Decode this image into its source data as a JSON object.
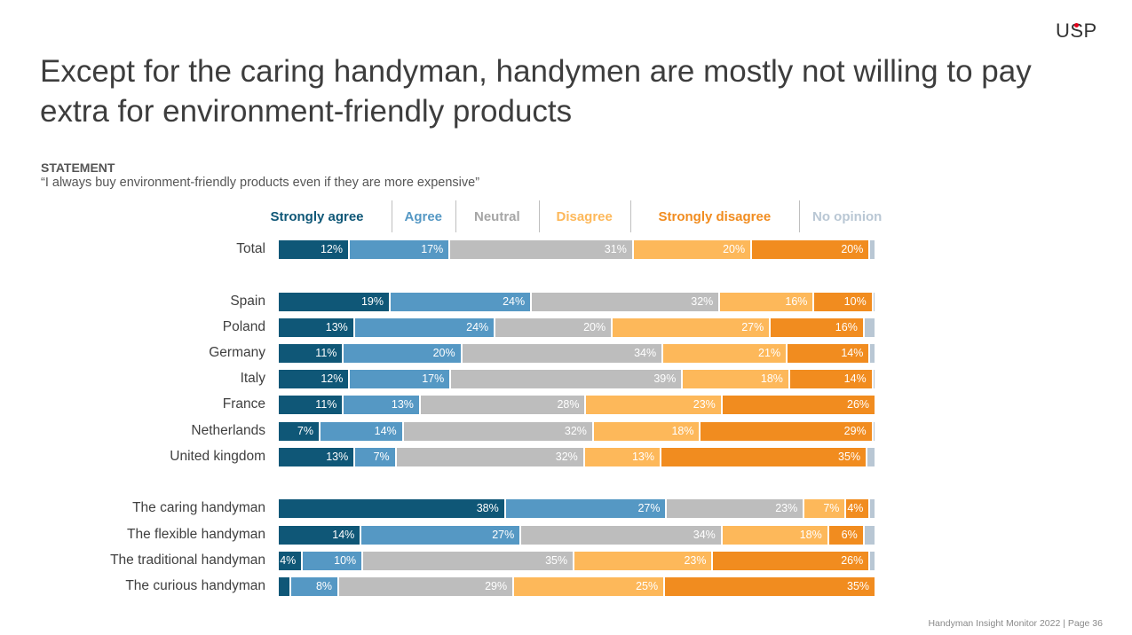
{
  "logo": "USP",
  "title": "Except for the caring handyman, handymen are mostly not willing to pay extra for environment-friendly products",
  "statement_label": "STATEMENT",
  "statement_text": "“I always buy environment-friendly products even if they are more expensive”",
  "footer": "Handyman Insight Monitor 2022 | Page 36",
  "colors": {
    "strongly_agree": "#0f5777",
    "agree": "#5598c4",
    "neutral": "#bdbdbd",
    "disagree": "#fdb85a",
    "strongly_disagree": "#f18c1f",
    "no_opinion": "#b9c7d4"
  },
  "chart_data": {
    "type": "bar",
    "orientation": "horizontal",
    "stacked": true,
    "legend_position": "top",
    "categories": [
      "Total",
      "Spain",
      "Poland",
      "Germany",
      "Italy",
      "France",
      "Netherlands",
      "United kingdom",
      "The caring handyman",
      "The flexible handyman",
      "The traditional handyman",
      "The curious handyman"
    ],
    "series": [
      {
        "name": "Strongly agree",
        "color": "#0f5777",
        "values": [
          12,
          19,
          13,
          11,
          12,
          11,
          7,
          13,
          38,
          14,
          4,
          2
        ]
      },
      {
        "name": "Agree",
        "color": "#5598c4",
        "values": [
          17,
          24,
          24,
          20,
          17,
          13,
          14,
          7,
          27,
          27,
          10,
          8
        ]
      },
      {
        "name": "Neutral",
        "color": "#bdbdbd",
        "values": [
          31,
          32,
          20,
          34,
          39,
          28,
          32,
          32,
          23,
          34,
          35,
          29
        ]
      },
      {
        "name": "Disagree",
        "color": "#fdb85a",
        "values": [
          20,
          16,
          27,
          21,
          18,
          23,
          18,
          13,
          7,
          18,
          23,
          25
        ]
      },
      {
        "name": "Strongly disagree",
        "color": "#f18c1f",
        "values": [
          20,
          10,
          16,
          14,
          14,
          26,
          29,
          35,
          4,
          6,
          26,
          35
        ]
      },
      {
        "name": "No opinion",
        "color": "#b9c7d4",
        "values": [
          1,
          0.5,
          2,
          1,
          0.5,
          0,
          0.5,
          1.5,
          1,
          2,
          1,
          0
        ]
      }
    ],
    "labels": [
      [
        "12%",
        "17%",
        "31%",
        "20%",
        "20%",
        ""
      ],
      [
        "19%",
        "24%",
        "32%",
        "16%",
        "10%",
        ""
      ],
      [
        "13%",
        "24%",
        "20%",
        "27%",
        "16%",
        ""
      ],
      [
        "11%",
        "20%",
        "34%",
        "21%",
        "14%",
        ""
      ],
      [
        "12%",
        "17%",
        "39%",
        "18%",
        "14%",
        ""
      ],
      [
        "11%",
        "13%",
        "28%",
        "23%",
        "26%",
        ""
      ],
      [
        "7%",
        "14%",
        "32%",
        "18%",
        "29%",
        ""
      ],
      [
        "13%",
        "7%",
        "32%",
        "13%",
        "35%",
        ""
      ],
      [
        "38%",
        "27%",
        "23%",
        "7%",
        "4%",
        ""
      ],
      [
        "14%",
        "27%",
        "34%",
        "18%",
        "6%",
        ""
      ],
      [
        "4%",
        "10%",
        "35%",
        "23%",
        "26%",
        ""
      ],
      [
        "",
        "8%",
        "29%",
        "25%",
        "35%",
        ""
      ]
    ]
  }
}
